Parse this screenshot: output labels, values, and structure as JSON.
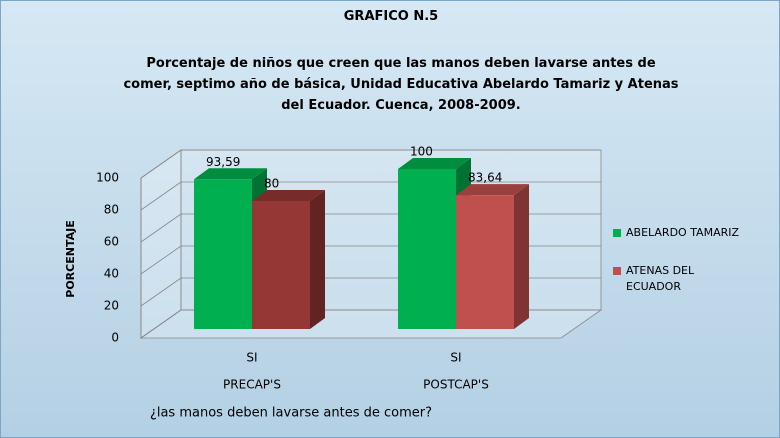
{
  "chart_data": {
    "type": "bar3d",
    "title": "GRAFICO N.5",
    "subtitle": "Porcentaje de niños que creen que las manos deben lavarse antes de comer,  septimo año de básica, Unidad Educativa  Abelardo Tamariz y Atenas del Ecuador.  Cuenca, 2008-2009.",
    "y_label": "PORCENTAJE",
    "x_label": "¿las manos deben lavarse antes de comer?",
    "categories": [
      "SI",
      "SI"
    ],
    "groups": [
      "PRECAP'S",
      "POSTCAP'S"
    ],
    "series": [
      {
        "name": "ABELARDO TAMARIZ",
        "color": "#00b050",
        "values": [
          93.59,
          100
        ],
        "value_labels": [
          "93,59",
          "100"
        ]
      },
      {
        "name": "ATENAS DEL ECUADOR",
        "color": "#c0504d",
        "colors": [
          "#953735",
          "#c0504d"
        ],
        "values": [
          80,
          83.64
        ],
        "value_labels": [
          "80",
          "83,64"
        ]
      }
    ],
    "ylim": [
      0,
      100
    ],
    "yticks": [
      0,
      20,
      40,
      60,
      80,
      100
    ],
    "grid": true,
    "legend": "right"
  }
}
